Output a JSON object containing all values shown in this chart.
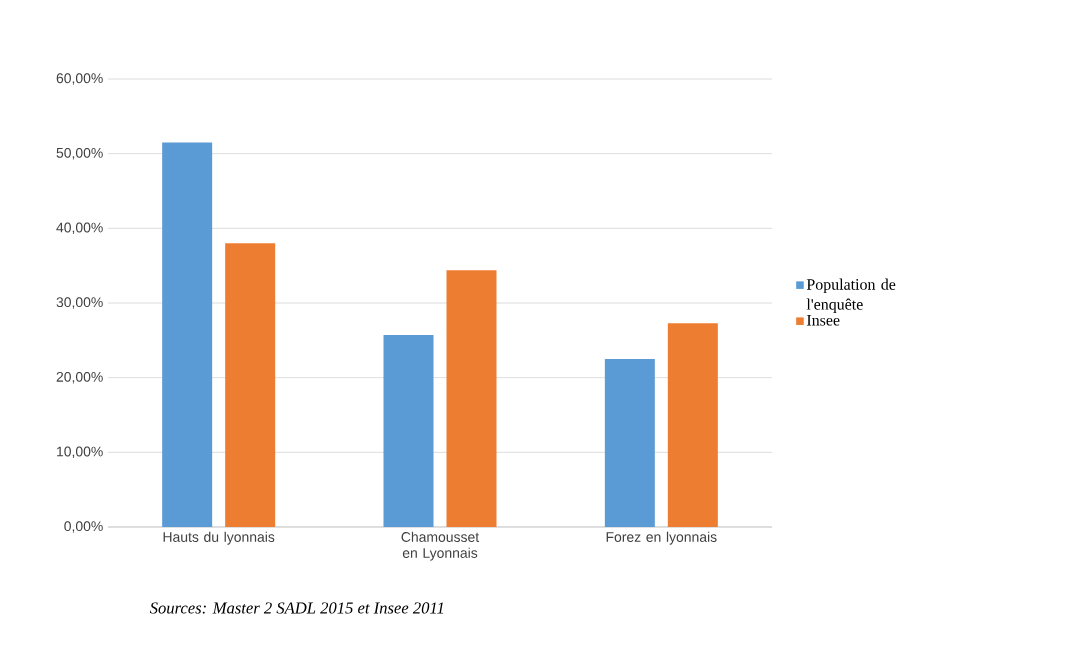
{
  "chart_data": {
    "type": "bar",
    "categories": [
      "Hauts du lyonnais",
      "Chamousset en Lyonnais",
      "Forez en lyonnais"
    ],
    "series": [
      {
        "name": "Population de l'enquête",
        "color": "#5b9bd5",
        "values": [
          51.5,
          25.7,
          22.5
        ]
      },
      {
        "name": "Insee",
        "color": "#ed7d31",
        "values": [
          38.0,
          34.4,
          27.3
        ]
      }
    ],
    "ylim": [
      0,
      60
    ],
    "yticks": [
      {
        "value": 0,
        "label": "0,00%"
      },
      {
        "value": 10,
        "label": "10,00%"
      },
      {
        "value": 20,
        "label": "20,00%"
      },
      {
        "value": 30,
        "label": "30,00%"
      },
      {
        "value": 40,
        "label": "40,00%"
      },
      {
        "value": 50,
        "label": "50,00%"
      },
      {
        "value": 60,
        "label": "60,00%"
      }
    ],
    "grid": "y",
    "legend": "right",
    "annotations": [
      "Sources: Master 2 SADL 2015 et Insee 2011"
    ]
  }
}
